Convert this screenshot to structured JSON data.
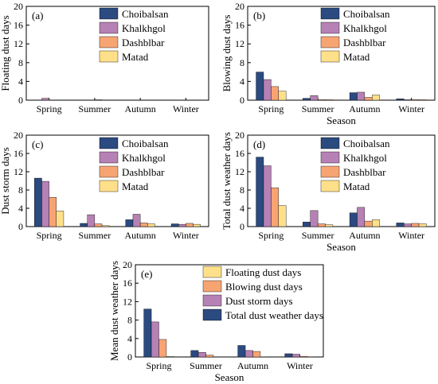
{
  "colors": {
    "Choibalsan": "#2b4a80",
    "Khalkhgol": "#b681b4",
    "Dashblbar": "#f7a473",
    "Matad": "#ffe08a",
    "Floating dust days": "#ffe08a",
    "Blowing dust days": "#f7a473",
    "Dust storm days": "#b681b4",
    "Total dust weather days": "#2b4a80"
  },
  "chart_data": [
    {
      "type": "bar",
      "panel_label": "(a)",
      "ylabel": "Floating dust days",
      "xlabel": "",
      "ylim": [
        0,
        20
      ],
      "yticks": [
        0,
        4,
        8,
        12,
        16,
        20
      ],
      "categories": [
        "Spring",
        "Summer",
        "Autumn",
        "Winter"
      ],
      "series": [
        {
          "name": "Choibalsan",
          "values": [
            0.05,
            0,
            0,
            0
          ]
        },
        {
          "name": "Khalkhgol",
          "values": [
            0.4,
            0.05,
            0.05,
            0
          ]
        },
        {
          "name": "Dashblbar",
          "values": [
            0.05,
            0.1,
            0,
            0
          ]
        },
        {
          "name": "Matad",
          "values": [
            0.05,
            0,
            0,
            0
          ]
        }
      ],
      "legend": [
        "Choibalsan",
        "Khalkhgol",
        "Dashblbar",
        "Matad"
      ]
    },
    {
      "type": "bar",
      "panel_label": "(b)",
      "ylabel": "Blowing dust days",
      "xlabel": "Season",
      "ylim": [
        0,
        20
      ],
      "yticks": [
        0,
        4,
        8,
        12,
        16,
        20
      ],
      "categories": [
        "Spring",
        "Summer",
        "Autumn",
        "Winter"
      ],
      "series": [
        {
          "name": "Choibalsan",
          "values": [
            6.0,
            0.4,
            1.6,
            0.3
          ]
        },
        {
          "name": "Khalkhgol",
          "values": [
            4.4,
            1.0,
            1.7,
            0.1
          ]
        },
        {
          "name": "Dashblbar",
          "values": [
            2.9,
            0.1,
            0.6,
            0.1
          ]
        },
        {
          "name": "Matad",
          "values": [
            1.9,
            0.1,
            1.1,
            0.1
          ]
        }
      ],
      "legend": [
        "Choibalsan",
        "Khalkhgol",
        "Dashblbar",
        "Matad"
      ]
    },
    {
      "type": "bar",
      "panel_label": "(c)",
      "ylabel": "Dust storm days",
      "xlabel": "",
      "ylim": [
        0,
        20
      ],
      "yticks": [
        0,
        4,
        8,
        12,
        16,
        20
      ],
      "categories": [
        "Spring",
        "Summer",
        "Autumn",
        "Winter"
      ],
      "series": [
        {
          "name": "Choibalsan",
          "values": [
            10.6,
            0.7,
            1.5,
            0.6
          ]
        },
        {
          "name": "Khalkhgol",
          "values": [
            9.9,
            2.6,
            2.7,
            0.5
          ]
        },
        {
          "name": "Dashblbar",
          "values": [
            6.4,
            0.6,
            0.8,
            0.7
          ]
        },
        {
          "name": "Matad",
          "values": [
            3.4,
            0.2,
            0.6,
            0.5
          ]
        }
      ],
      "legend": [
        "Choibalsan",
        "Khalkhgol",
        "Dashblbar",
        "Matad"
      ]
    },
    {
      "type": "bar",
      "panel_label": "(d)",
      "ylabel": "Total dust weather days",
      "xlabel": "Season",
      "ylim": [
        0,
        20
      ],
      "yticks": [
        0,
        4,
        8,
        12,
        16,
        20
      ],
      "categories": [
        "Spring",
        "Summer",
        "Autumn",
        "Winter"
      ],
      "series": [
        {
          "name": "Choibalsan",
          "values": [
            15.2,
            1.0,
            3.0,
            0.8
          ]
        },
        {
          "name": "Khalkhgol",
          "values": [
            13.3,
            3.5,
            4.2,
            0.6
          ]
        },
        {
          "name": "Dashblbar",
          "values": [
            8.5,
            0.6,
            1.2,
            0.7
          ]
        },
        {
          "name": "Matad",
          "values": [
            4.6,
            0.4,
            1.5,
            0.6
          ]
        }
      ],
      "legend": [
        "Choibalsan",
        "Khalkhgol",
        "Dashblbar",
        "Matad"
      ]
    },
    {
      "type": "bar",
      "panel_label": "(e)",
      "ylabel": "Mean dust weather days",
      "xlabel": "Season",
      "ylim": [
        0,
        20
      ],
      "yticks": [
        0,
        4,
        8,
        12,
        16,
        20
      ],
      "categories": [
        "Spring",
        "Summer",
        "Autumn",
        "Winter"
      ],
      "series": [
        {
          "name": "Total dust weather days",
          "values": [
            10.4,
            1.4,
            2.5,
            0.7
          ]
        },
        {
          "name": "Dust storm days",
          "values": [
            7.6,
            1.0,
            1.4,
            0.6
          ]
        },
        {
          "name": "Blowing dust days",
          "values": [
            3.8,
            0.4,
            1.2,
            0.15
          ]
        },
        {
          "name": "Floating dust days",
          "values": [
            0.1,
            0.05,
            0.02,
            0.02
          ]
        }
      ],
      "legend": [
        "Floating dust days",
        "Blowing dust days",
        "Dust storm days",
        "Total dust weather days"
      ]
    }
  ]
}
